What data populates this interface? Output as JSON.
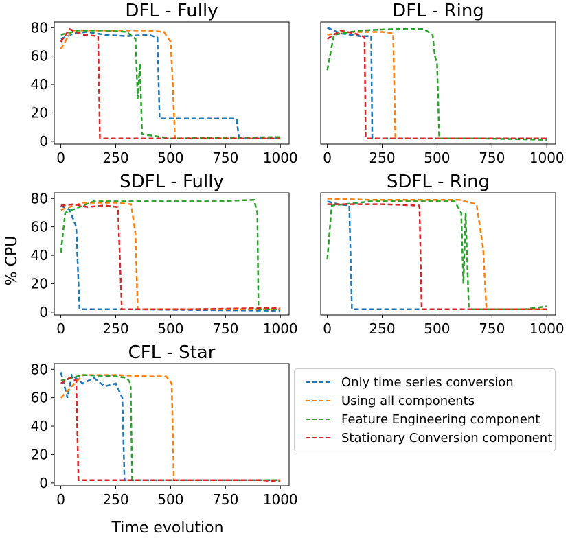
{
  "figure": {
    "ylabel": "% CPU",
    "xlabel": "Time evolution"
  },
  "series_defs": [
    {
      "name": "Only time series conversion",
      "color": "#1f77b4"
    },
    {
      "name": "Using all components",
      "color": "#ff7f0e"
    },
    {
      "name": "Feature Engineering component",
      "color": "#2ca02c"
    },
    {
      "name": "Stationary Conversion component",
      "color": "#d62728"
    }
  ],
  "legend": {
    "items": [
      {
        "label": "Only time series conversion",
        "color": "#1f77b4"
      },
      {
        "label": "Using all components",
        "color": "#ff7f0e"
      },
      {
        "label": "Feature Engineering component",
        "color": "#2ca02c"
      },
      {
        "label": "Stationary Conversion component",
        "color": "#d62728"
      }
    ]
  },
  "chart_data": [
    {
      "type": "line",
      "title": "DFL - Fully",
      "xticks": [
        0,
        250,
        500,
        750,
        1000
      ],
      "yticks": [
        0,
        20,
        40,
        60,
        80
      ],
      "show_yticks": true,
      "xlim": [
        -30,
        1040
      ],
      "ylim": [
        -2,
        84
      ],
      "series": [
        {
          "name": "Only time series conversion",
          "points": [
            [
              0,
              72
            ],
            [
              60,
              76
            ],
            [
              120,
              77
            ],
            [
              200,
              75
            ],
            [
              300,
              74
            ],
            [
              400,
              75
            ],
            [
              440,
              73
            ],
            [
              450,
              16
            ],
            [
              600,
              16
            ],
            [
              800,
              16
            ],
            [
              812,
              2
            ],
            [
              900,
              2
            ],
            [
              1000,
              2
            ]
          ]
        },
        {
          "name": "Using all components",
          "points": [
            [
              0,
              65
            ],
            [
              50,
              78
            ],
            [
              150,
              78
            ],
            [
              300,
              78
            ],
            [
              400,
              78
            ],
            [
              470,
              77
            ],
            [
              500,
              70
            ],
            [
              510,
              40
            ],
            [
              520,
              2
            ],
            [
              700,
              2
            ],
            [
              1000,
              2
            ]
          ]
        },
        {
          "name": "Feature Engineering component",
          "points": [
            [
              0,
              75
            ],
            [
              80,
              78
            ],
            [
              200,
              78
            ],
            [
              300,
              77
            ],
            [
              340,
              72
            ],
            [
              350,
              30
            ],
            [
              360,
              55
            ],
            [
              370,
              5
            ],
            [
              500,
              2
            ],
            [
              1000,
              3
            ]
          ]
        },
        {
          "name": "Stationary Conversion component",
          "points": [
            [
              0,
              70
            ],
            [
              40,
              79
            ],
            [
              100,
              75
            ],
            [
              170,
              74
            ],
            [
              178,
              2
            ],
            [
              400,
              2
            ],
            [
              800,
              2
            ],
            [
              1000,
              2
            ]
          ]
        }
      ]
    },
    {
      "type": "line",
      "title": "DFL - Ring",
      "xticks": [
        0,
        250,
        500,
        750,
        1000
      ],
      "yticks": [
        0,
        20,
        40,
        60,
        80
      ],
      "show_yticks": false,
      "xlim": [
        -30,
        1040
      ],
      "ylim": [
        -2,
        84
      ],
      "series": [
        {
          "name": "Only time series conversion",
          "points": [
            [
              0,
              80
            ],
            [
              60,
              76
            ],
            [
              150,
              74
            ],
            [
              200,
              74
            ],
            [
              205,
              2
            ],
            [
              400,
              2
            ],
            [
              1000,
              2
            ]
          ]
        },
        {
          "name": "Using all components",
          "points": [
            [
              0,
              75
            ],
            [
              100,
              77
            ],
            [
              250,
              77
            ],
            [
              300,
              76
            ],
            [
              310,
              2
            ],
            [
              600,
              2
            ],
            [
              1000,
              2
            ]
          ]
        },
        {
          "name": "Feature Engineering component",
          "points": [
            [
              0,
              50
            ],
            [
              30,
              75
            ],
            [
              150,
              78
            ],
            [
              300,
              79
            ],
            [
              440,
              79
            ],
            [
              480,
              75
            ],
            [
              490,
              60
            ],
            [
              500,
              55
            ],
            [
              510,
              2
            ],
            [
              700,
              2
            ],
            [
              1000,
              1
            ]
          ]
        },
        {
          "name": "Stationary Conversion component",
          "points": [
            [
              0,
              72
            ],
            [
              60,
              78
            ],
            [
              150,
              75
            ],
            [
              170,
              73
            ],
            [
              175,
              2
            ],
            [
              500,
              2
            ],
            [
              1000,
              2
            ]
          ]
        }
      ]
    },
    {
      "type": "line",
      "title": "SDFL - Fully",
      "xticks": [
        0,
        250,
        500,
        750,
        1000
      ],
      "yticks": [
        0,
        20,
        40,
        60,
        80
      ],
      "show_yticks": true,
      "xlim": [
        -30,
        1040
      ],
      "ylim": [
        -2,
        84
      ],
      "series": [
        {
          "name": "Only time series conversion",
          "points": [
            [
              0,
              75
            ],
            [
              40,
              72
            ],
            [
              70,
              60
            ],
            [
              85,
              2
            ],
            [
              300,
              2
            ],
            [
              1000,
              1
            ]
          ]
        },
        {
          "name": "Using all components",
          "points": [
            [
              0,
              72
            ],
            [
              100,
              77
            ],
            [
              250,
              77
            ],
            [
              320,
              76
            ],
            [
              340,
              55
            ],
            [
              350,
              2
            ],
            [
              600,
              2
            ],
            [
              1000,
              2
            ]
          ]
        },
        {
          "name": "Feature Engineering component",
          "points": [
            [
              0,
              42
            ],
            [
              20,
              70
            ],
            [
              150,
              78
            ],
            [
              300,
              78
            ],
            [
              500,
              78
            ],
            [
              700,
              78
            ],
            [
              880,
              79
            ],
            [
              895,
              70
            ],
            [
              900,
              2
            ],
            [
              1000,
              2
            ]
          ]
        },
        {
          "name": "Stationary Conversion component",
          "points": [
            [
              0,
              75
            ],
            [
              60,
              76
            ],
            [
              120,
              74
            ],
            [
              200,
              75
            ],
            [
              260,
              74
            ],
            [
              278,
              2
            ],
            [
              600,
              2
            ],
            [
              1000,
              3
            ]
          ]
        }
      ]
    },
    {
      "type": "line",
      "title": "SDFL - Ring",
      "xticks": [
        0,
        250,
        500,
        750,
        1000
      ],
      "yticks": [
        0,
        20,
        40,
        60,
        80
      ],
      "show_yticks": false,
      "xlim": [
        -30,
        1040
      ],
      "ylim": [
        -2,
        84
      ],
      "series": [
        {
          "name": "Only time series conversion",
          "points": [
            [
              0,
              78
            ],
            [
              50,
              76
            ],
            [
              100,
              75
            ],
            [
              112,
              2
            ],
            [
              400,
              2
            ],
            [
              1000,
              2
            ]
          ]
        },
        {
          "name": "Using all components",
          "points": [
            [
              0,
              80
            ],
            [
              200,
              79
            ],
            [
              400,
              79
            ],
            [
              600,
              79
            ],
            [
              680,
              76
            ],
            [
              710,
              45
            ],
            [
              725,
              2
            ],
            [
              900,
              2
            ],
            [
              1000,
              2
            ]
          ]
        },
        {
          "name": "Feature Engineering component",
          "points": [
            [
              0,
              37
            ],
            [
              20,
              75
            ],
            [
              200,
              78
            ],
            [
              400,
              78
            ],
            [
              580,
              78
            ],
            [
              610,
              70
            ],
            [
              620,
              20
            ],
            [
              630,
              70
            ],
            [
              645,
              2
            ],
            [
              900,
              2
            ],
            [
              1000,
              4
            ]
          ]
        },
        {
          "name": "Stationary Conversion component",
          "points": [
            [
              0,
              76
            ],
            [
              100,
              76
            ],
            [
              250,
              76
            ],
            [
              420,
              75
            ],
            [
              430,
              2
            ],
            [
              700,
              2
            ],
            [
              1000,
              2
            ]
          ]
        }
      ]
    },
    {
      "type": "line",
      "title": "CFL - Star",
      "xticks": [
        0,
        250,
        500,
        750,
        1000
      ],
      "yticks": [
        0,
        20,
        40,
        60,
        80
      ],
      "show_yticks": true,
      "xlim": [
        -30,
        1040
      ],
      "ylim": [
        -2,
        84
      ],
      "series": [
        {
          "name": "Only time series conversion",
          "points": [
            [
              0,
              78
            ],
            [
              30,
              60
            ],
            [
              50,
              76
            ],
            [
              100,
              70
            ],
            [
              150,
              74
            ],
            [
              200,
              68
            ],
            [
              250,
              70
            ],
            [
              280,
              60
            ],
            [
              290,
              2
            ],
            [
              500,
              2
            ],
            [
              1000,
              2
            ]
          ]
        },
        {
          "name": "Using all components",
          "points": [
            [
              0,
              60
            ],
            [
              100,
              76
            ],
            [
              250,
              76
            ],
            [
              400,
              75
            ],
            [
              480,
              75
            ],
            [
              505,
              70
            ],
            [
              515,
              2
            ],
            [
              700,
              2
            ],
            [
              1000,
              2
            ]
          ]
        },
        {
          "name": "Feature Engineering component",
          "points": [
            [
              0,
              72
            ],
            [
              100,
              76
            ],
            [
              250,
              75
            ],
            [
              300,
              74
            ],
            [
              318,
              70
            ],
            [
              325,
              2
            ],
            [
              700,
              2
            ],
            [
              1000,
              2
            ]
          ]
        },
        {
          "name": "Stationary Conversion component",
          "points": [
            [
              0,
              70
            ],
            [
              40,
              74
            ],
            [
              70,
              72
            ],
            [
              80,
              2
            ],
            [
              400,
              2
            ],
            [
              900,
              2
            ],
            [
              1000,
              1
            ]
          ]
        }
      ]
    }
  ]
}
